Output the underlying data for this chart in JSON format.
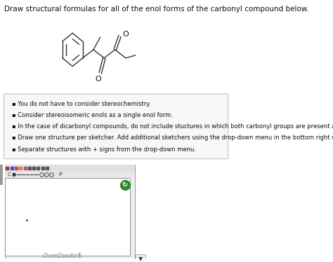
{
  "title": "Draw structural formulas for all of the enol forms of the carbonyl compound below.",
  "title_fontsize": 7.5,
  "bullet_points": [
    "You do not have to consider stereochemistry.",
    "Consider stereoisomeric enols as a single enol form.",
    "In the case of dicarbonyl compounds, do not include stuctures in which both carbonyl groups are present as enols.",
    "Draw one structure per sketcher. Add additional sketchers using the drop-down menu in the bottom right corner.",
    "Separate structures with + signs from the drop-down menu."
  ],
  "bullet_fontsize": 6.0,
  "box_bg": "#f7f7f7",
  "box_border": "#bbbbbb",
  "sketcher_bg": "#ffffff",
  "sketcher_border": "#aaaaaa",
  "chemdoodle_text": "ChemDoodle®",
  "page_bg": "#ffffff",
  "gray_bg": "#e8e8e8"
}
